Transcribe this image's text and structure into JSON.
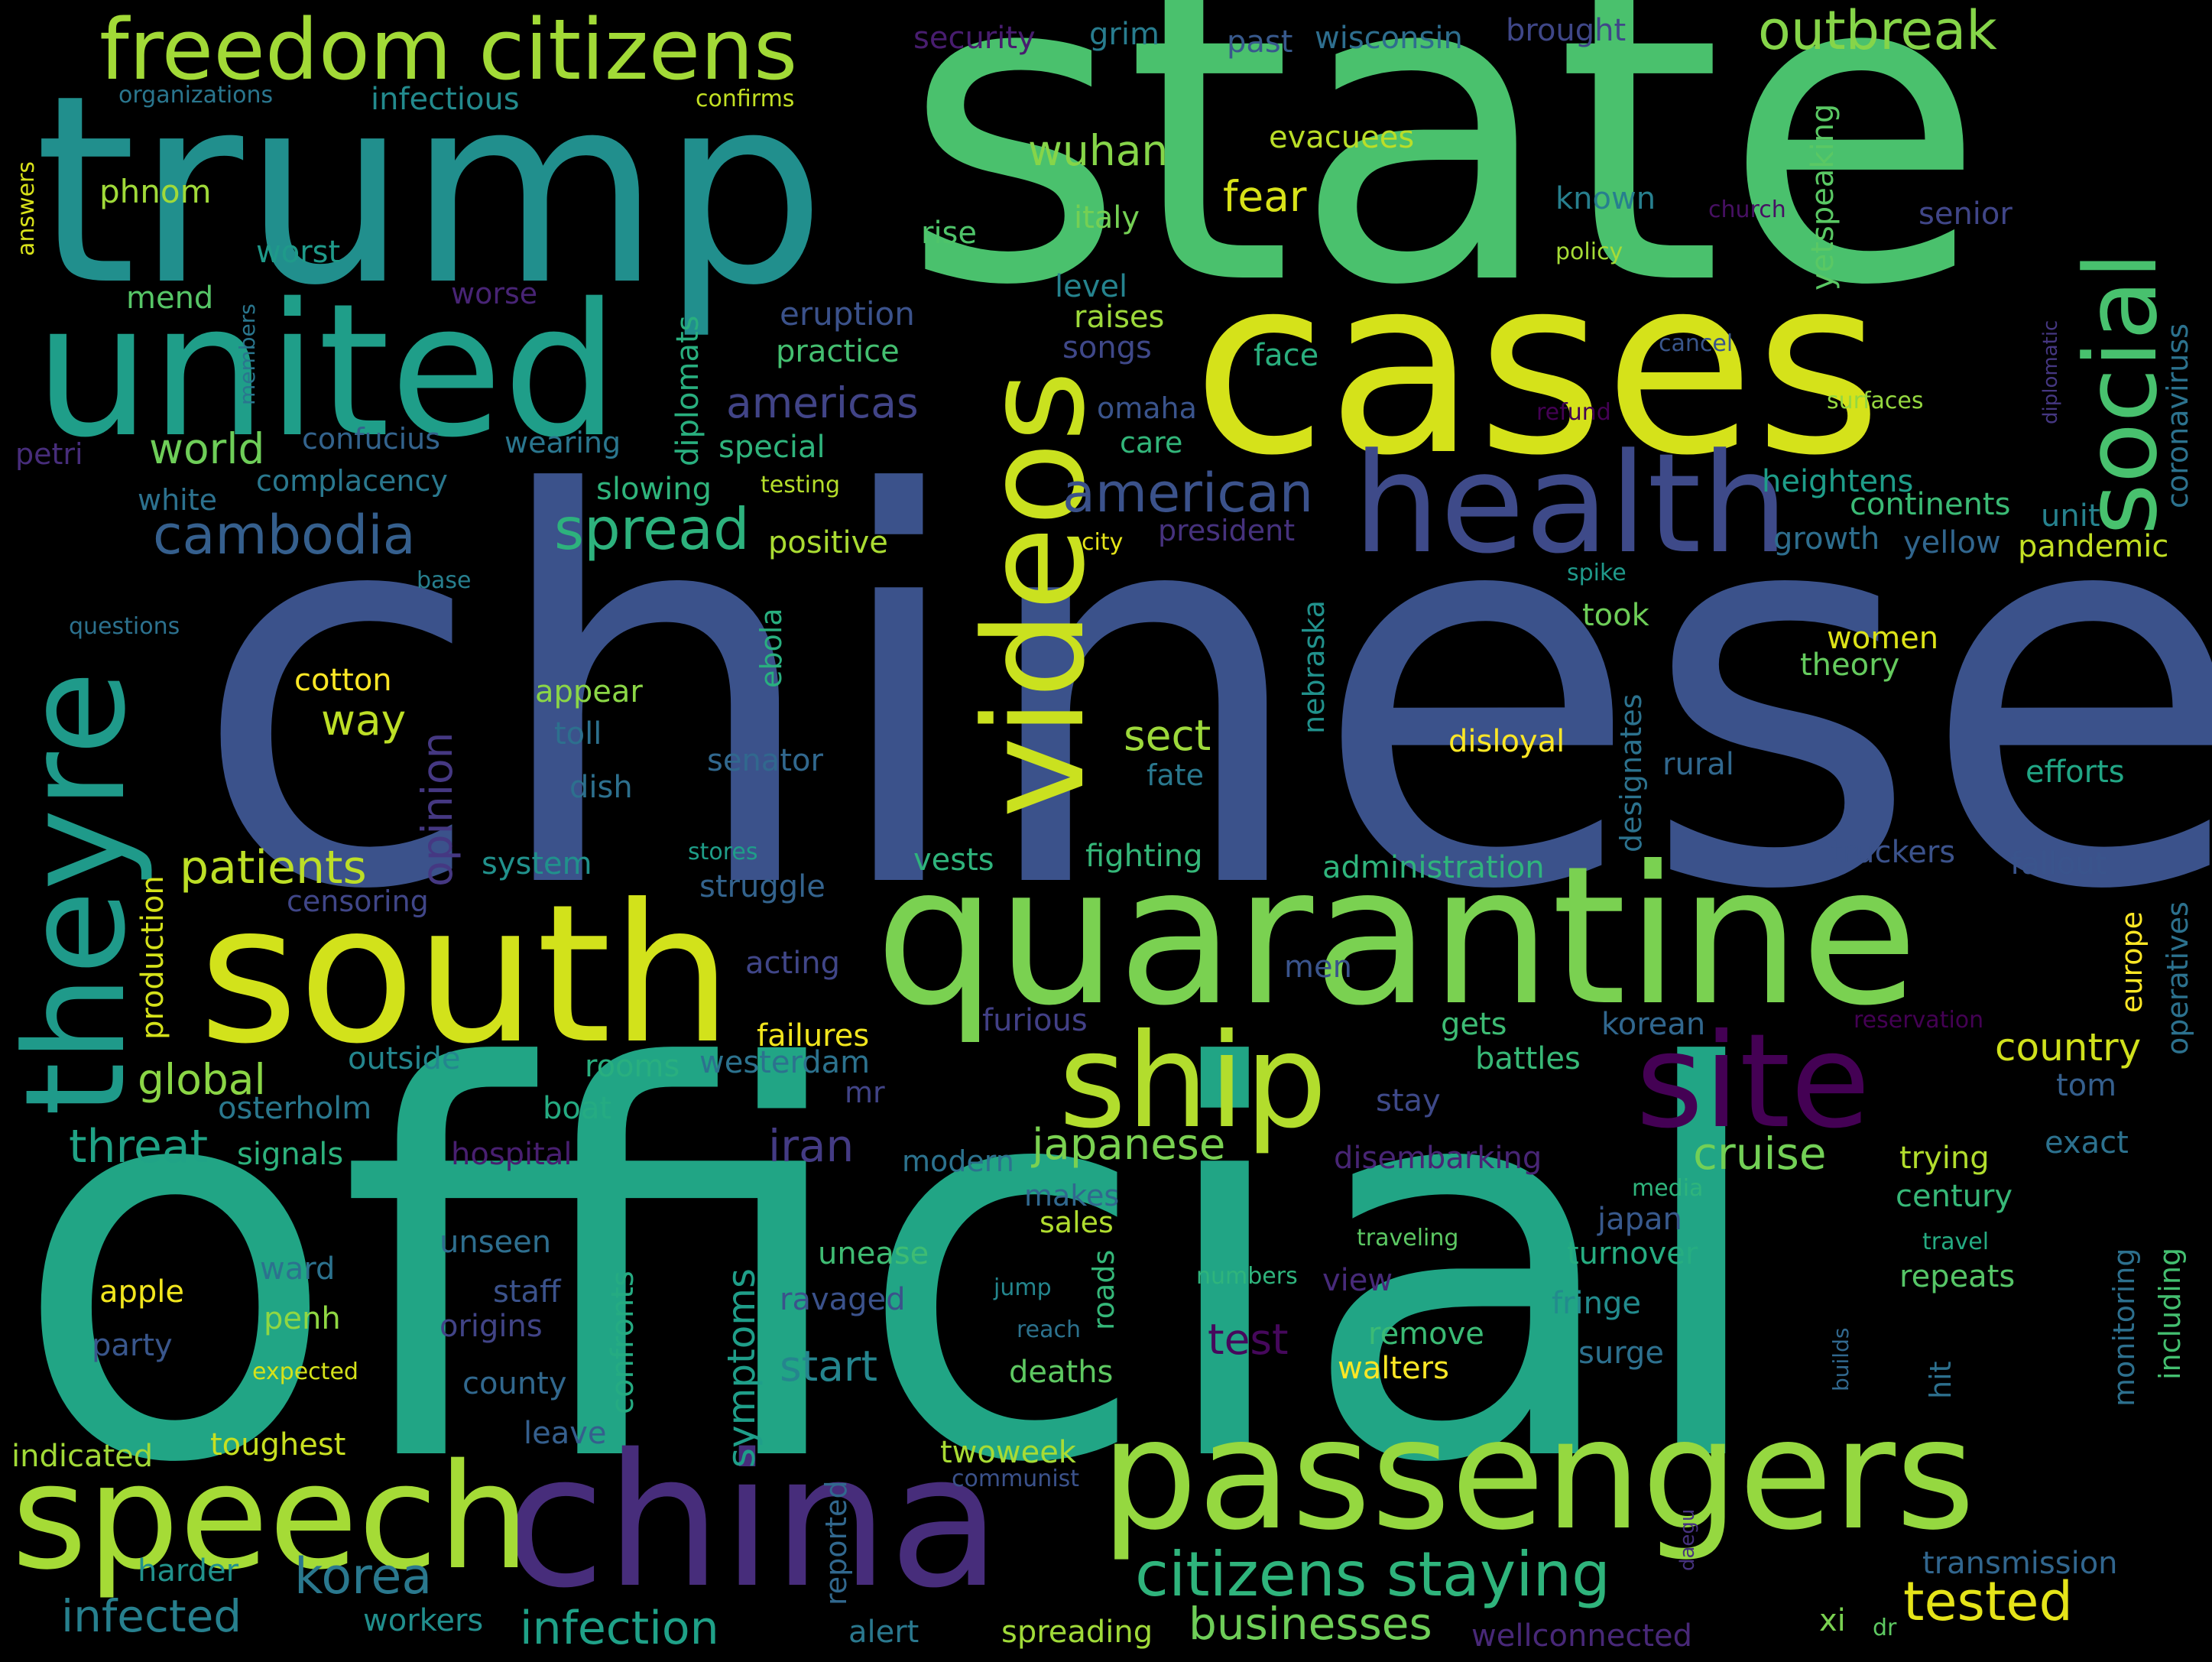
{
  "background": "#000000",
  "words": [
    {
      "text": "chinese",
      "color": "#3b528b"
    },
    {
      "text": "official",
      "color": "#21a585"
    },
    {
      "text": "state",
      "color": "#4ac16d"
    },
    {
      "text": "trump",
      "color": "#218f8d"
    },
    {
      "text": "cases",
      "color": "#d5e21a"
    },
    {
      "text": "quarantine",
      "color": "#7ad151"
    },
    {
      "text": "united",
      "color": "#1f9e89"
    },
    {
      "text": "south",
      "color": "#d2e21b"
    },
    {
      "text": "passengers",
      "color": "#95d840"
    },
    {
      "text": "china",
      "color": "#472d7b"
    },
    {
      "text": "speech",
      "color": "#a5db36"
    },
    {
      "text": "health",
      "color": "#3e4a89"
    },
    {
      "text": "videos",
      "color": "#cae11f"
    },
    {
      "text": "theyre",
      "color": "#1f9a8a"
    },
    {
      "text": "ship",
      "color": "#b2dd2d"
    },
    {
      "text": "site",
      "color": "#440154"
    },
    {
      "text": "freedom citizens",
      "color": "#a2da37"
    },
    {
      "text": "social",
      "color": "#48c16e"
    },
    {
      "text": "citizens staying",
      "color": "#2fb47c"
    },
    {
      "text": "outbreak",
      "color": "#86d549"
    },
    {
      "text": "spread",
      "color": "#2db27d"
    },
    {
      "text": "cambodia",
      "color": "#355f8d"
    },
    {
      "text": "american",
      "color": "#3b528b"
    },
    {
      "text": "patients",
      "color": "#bddf26"
    },
    {
      "text": "korea",
      "color": "#2a788e"
    },
    {
      "text": "tested",
      "color": "#e5e419"
    },
    {
      "text": "infection",
      "color": "#1fa188"
    },
    {
      "text": "businesses",
      "color": "#6ece58"
    },
    {
      "text": "infected",
      "color": "#27808e"
    },
    {
      "text": "cruise",
      "color": "#73d056"
    },
    {
      "text": "japanese",
      "color": "#7ad151"
    },
    {
      "text": "threat",
      "color": "#20a386"
    },
    {
      "text": "global",
      "color": "#8bd646"
    },
    {
      "text": "country",
      "color": "#d0e11c"
    },
    {
      "text": "iran",
      "color": "#443b84"
    },
    {
      "text": "opinion",
      "color": "#453882"
    },
    {
      "text": "americas",
      "color": "#414487"
    },
    {
      "text": "world",
      "color": "#6ece58"
    },
    {
      "text": "sect",
      "color": "#9dd93b"
    },
    {
      "text": "wuhan",
      "color": "#86d549"
    },
    {
      "text": "fear",
      "color": "#d8e219"
    },
    {
      "text": "start",
      "color": "#25858e"
    },
    {
      "text": "symptoms",
      "color": "#1f9e89"
    },
    {
      "text": "test",
      "color": "#46085c"
    },
    {
      "text": "way",
      "color": "#bddf26"
    },
    {
      "text": "coronaviruss",
      "color": "#2c728e"
    },
    {
      "text": "security",
      "color": "#481d6f"
    },
    {
      "text": "grim",
      "color": "#287c8e"
    },
    {
      "text": "past",
      "color": "#38598c"
    },
    {
      "text": "wisconsin",
      "color": "#2e6e8e"
    },
    {
      "text": "brought",
      "color": "#3f4788"
    },
    {
      "text": "organizations",
      "color": "#2a768e"
    },
    {
      "text": "infectious",
      "color": "#238a8d"
    },
    {
      "text": "confirms",
      "color": "#c2df23"
    },
    {
      "text": "evacuees",
      "color": "#bade28"
    },
    {
      "text": "answers",
      "color": "#d8e219"
    },
    {
      "text": "phnom",
      "color": "#a0da39"
    },
    {
      "text": "known",
      "color": "#277f8e"
    },
    {
      "text": "church",
      "color": "#471063"
    },
    {
      "text": "yetspeaking",
      "color": "#5ac864"
    },
    {
      "text": "italy",
      "color": "#75d054"
    },
    {
      "text": "rise",
      "color": "#4fc46a"
    },
    {
      "text": "senior",
      "color": "#404688"
    },
    {
      "text": "policy",
      "color": "#a5db36"
    },
    {
      "text": "worst",
      "color": "#1f9a8a"
    },
    {
      "text": "mend",
      "color": "#56c667"
    },
    {
      "text": "members",
      "color": "#2a768e"
    },
    {
      "text": "worse",
      "color": "#482475"
    },
    {
      "text": "diplomats",
      "color": "#29af7f"
    },
    {
      "text": "eruption",
      "color": "#3b528b"
    },
    {
      "text": "level",
      "color": "#25838e"
    },
    {
      "text": "raises",
      "color": "#9dd93b"
    },
    {
      "text": "songs",
      "color": "#3f4889"
    },
    {
      "text": "practice",
      "color": "#44bf70"
    },
    {
      "text": "face",
      "color": "#2ab07f"
    },
    {
      "text": "cancel",
      "color": "#39568c"
    },
    {
      "text": "diplomatic",
      "color": "#453781"
    },
    {
      "text": "confucius",
      "color": "#33638d"
    },
    {
      "text": "wearing",
      "color": "#2a768e"
    },
    {
      "text": "omaha",
      "color": "#3a548c"
    },
    {
      "text": "refund",
      "color": "#440154"
    },
    {
      "text": "surfaces",
      "color": "#95d840"
    },
    {
      "text": "petri",
      "color": "#472d7b"
    },
    {
      "text": "special",
      "color": "#2fb47c"
    },
    {
      "text": "care",
      "color": "#32b67a"
    },
    {
      "text": "complacency",
      "color": "#2a788e"
    },
    {
      "text": "white",
      "color": "#2c718e"
    },
    {
      "text": "slowing",
      "color": "#2fb47c"
    },
    {
      "text": "testing",
      "color": "#b5de2b"
    },
    {
      "text": "heightens",
      "color": "#1e9d89"
    },
    {
      "text": "continents",
      "color": "#3bbb75"
    },
    {
      "text": "growth",
      "color": "#2e6e8e"
    },
    {
      "text": "yellow",
      "color": "#31668e"
    },
    {
      "text": "pandemic",
      "color": "#c2df23"
    },
    {
      "text": "unit",
      "color": "#26828e"
    },
    {
      "text": "positive",
      "color": "#aadc32"
    },
    {
      "text": "city",
      "color": "#e5e419"
    },
    {
      "text": "president",
      "color": "#46327e"
    },
    {
      "text": "base",
      "color": "#277f8e"
    },
    {
      "text": "spike",
      "color": "#1f998a"
    },
    {
      "text": "questions",
      "color": "#2c718e"
    },
    {
      "text": "ebola",
      "color": "#29af7f"
    },
    {
      "text": "took",
      "color": "#6ece58"
    },
    {
      "text": "nebraska",
      "color": "#21918c"
    },
    {
      "text": "women",
      "color": "#dde318"
    },
    {
      "text": "theory",
      "color": "#65cb5e"
    },
    {
      "text": "cotton",
      "color": "#fde725"
    },
    {
      "text": "appear",
      "color": "#8bd646"
    },
    {
      "text": "toll",
      "color": "#2d708e"
    },
    {
      "text": "dish",
      "color": "#2d708e"
    },
    {
      "text": "senator",
      "color": "#31688e"
    },
    {
      "text": "fate",
      "color": "#2a788e"
    },
    {
      "text": "disloyal",
      "color": "#fde725"
    },
    {
      "text": "designates",
      "color": "#2c728e"
    },
    {
      "text": "rural",
      "color": "#31688e"
    },
    {
      "text": "efforts",
      "color": "#21a685"
    },
    {
      "text": "stores",
      "color": "#1f9e89"
    },
    {
      "text": "vests",
      "color": "#2fb47c"
    },
    {
      "text": "fighting",
      "color": "#35b779"
    },
    {
      "text": "administration",
      "color": "#2fb47c"
    },
    {
      "text": "truckers",
      "color": "#3b528b"
    },
    {
      "text": "fallout",
      "color": "#3a548c"
    },
    {
      "text": "system",
      "color": "#21918c"
    },
    {
      "text": "struggle",
      "color": "#33638d"
    },
    {
      "text": "censoring",
      "color": "#404688"
    },
    {
      "text": "production",
      "color": "#d5e21a"
    },
    {
      "text": "europe",
      "color": "#fde725"
    },
    {
      "text": "operatives",
      "color": "#2c718e"
    },
    {
      "text": "acting",
      "color": "#404688"
    },
    {
      "text": "men",
      "color": "#3a548c"
    },
    {
      "text": "reservation",
      "color": "#440154"
    },
    {
      "text": "failures",
      "color": "#f1e51d"
    },
    {
      "text": "furious",
      "color": "#424086"
    },
    {
      "text": "gets",
      "color": "#3dbc74"
    },
    {
      "text": "korean",
      "color": "#31678e"
    },
    {
      "text": "outside",
      "color": "#24868e"
    },
    {
      "text": "rooms",
      "color": "#29af7f"
    },
    {
      "text": "westerdam",
      "color": "#2c728e"
    },
    {
      "text": "battles",
      "color": "#38b977"
    },
    {
      "text": "mr",
      "color": "#414487"
    },
    {
      "text": "stay",
      "color": "#3e4989"
    },
    {
      "text": "boat",
      "color": "#25ab82"
    },
    {
      "text": "tom",
      "color": "#355f8d"
    },
    {
      "text": "osterholm",
      "color": "#2a788e"
    },
    {
      "text": "signals",
      "color": "#2db27d"
    },
    {
      "text": "hospital",
      "color": "#481f70"
    },
    {
      "text": "modern",
      "color": "#2c728e"
    },
    {
      "text": "disembarking",
      "color": "#482575"
    },
    {
      "text": "trying",
      "color": "#b2dd2d"
    },
    {
      "text": "exact",
      "color": "#2c718e"
    },
    {
      "text": "makes",
      "color": "#31688e"
    },
    {
      "text": "media",
      "color": "#2fb47c"
    },
    {
      "text": "century",
      "color": "#37b878"
    },
    {
      "text": "sales",
      "color": "#b0dd2f"
    },
    {
      "text": "japan",
      "color": "#38598c"
    },
    {
      "text": "monitoring",
      "color": "#2d708e"
    },
    {
      "text": "including",
      "color": "#44bf70"
    },
    {
      "text": "unseen",
      "color": "#2e6e8e"
    },
    {
      "text": "unease",
      "color": "#3fbc73"
    },
    {
      "text": "traveling",
      "color": "#5cc863"
    },
    {
      "text": "travel",
      "color": "#25ab82"
    },
    {
      "text": "turnover",
      "color": "#26ad81"
    },
    {
      "text": "confronts",
      "color": "#25ab82"
    },
    {
      "text": "roads",
      "color": "#35b779"
    },
    {
      "text": "numbers",
      "color": "#2fb47c"
    },
    {
      "text": "view",
      "color": "#472a7a"
    },
    {
      "text": "repeats",
      "color": "#56c667"
    },
    {
      "text": "apple",
      "color": "#f1e51d"
    },
    {
      "text": "ward",
      "color": "#2c728e"
    },
    {
      "text": "staff",
      "color": "#3b528b"
    },
    {
      "text": "ravaged",
      "color": "#3b528b"
    },
    {
      "text": "jump",
      "color": "#24868e"
    },
    {
      "text": "fringe",
      "color": "#228b8d"
    },
    {
      "text": "penh",
      "color": "#90d743"
    },
    {
      "text": "origins",
      "color": "#414487"
    },
    {
      "text": "reach",
      "color": "#2c728e"
    },
    {
      "text": "remove",
      "color": "#3bbb75"
    },
    {
      "text": "builds",
      "color": "#31688e"
    },
    {
      "text": "hit",
      "color": "#2d708e"
    },
    {
      "text": "party",
      "color": "#39568c"
    },
    {
      "text": "surge",
      "color": "#2d708e"
    },
    {
      "text": "walters",
      "color": "#fde725"
    },
    {
      "text": "deaths",
      "color": "#5ec962"
    },
    {
      "text": "expected",
      "color": "#d5e21a"
    },
    {
      "text": "county",
      "color": "#31688e"
    },
    {
      "text": "toughest",
      "color": "#c8e020"
    },
    {
      "text": "leave",
      "color": "#355f8d"
    },
    {
      "text": "indicated",
      "color": "#a2da37"
    },
    {
      "text": "twoweek",
      "color": "#a8db34"
    },
    {
      "text": "reported",
      "color": "#31688e"
    },
    {
      "text": "communist",
      "color": "#3b528b"
    },
    {
      "text": "daegu",
      "color": "#46327e"
    },
    {
      "text": "harder",
      "color": "#21918c"
    },
    {
      "text": "transmission",
      "color": "#31668e"
    },
    {
      "text": "workers",
      "color": "#218f8d"
    },
    {
      "text": "alert",
      "color": "#2a788e"
    },
    {
      "text": "spreading",
      "color": "#a0da39"
    },
    {
      "text": "wellconnected",
      "color": "#482878"
    },
    {
      "text": "xi",
      "color": "#7ad151"
    },
    {
      "text": "dr",
      "color": "#5ec962"
    }
  ]
}
